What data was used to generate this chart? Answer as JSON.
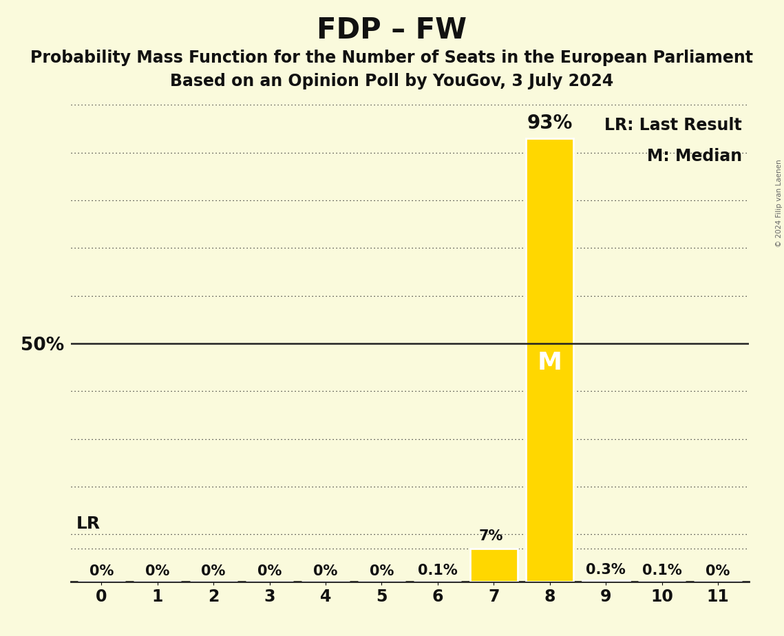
{
  "title": "FDP – FW",
  "subtitle1": "Probability Mass Function for the Number of Seats in the European Parliament",
  "subtitle2": "Based on an Opinion Poll by YouGov, 3 July 2024",
  "copyright": "© 2024 Filip van Laenen",
  "background_color": "#fafadc",
  "bar_color": "#ffd700",
  "bar_edge_color": "#ffffff",
  "categories": [
    0,
    1,
    2,
    3,
    4,
    5,
    6,
    7,
    8,
    9,
    10,
    11
  ],
  "values": [
    0.0,
    0.0,
    0.0,
    0.0,
    0.0,
    0.0,
    0.001,
    0.07,
    0.93,
    0.003,
    0.001,
    0.0
  ],
  "bar_labels": [
    "0%",
    "0%",
    "0%",
    "0%",
    "0%",
    "0%",
    "0.1%",
    "7%",
    "93%",
    "0.3%",
    "0.1%",
    "0%"
  ],
  "ylim": [
    0,
    1.0
  ],
  "ytick_positions": [
    0.0,
    0.1,
    0.2,
    0.3,
    0.4,
    0.5,
    0.6,
    0.7,
    0.8,
    0.9,
    1.0
  ],
  "median_bar": 8,
  "median_label": "M",
  "lr_bar": 7,
  "lr_label": "LR",
  "lr_value": 0.07,
  "legend_lr": "LR: Last Result",
  "legend_m": "M: Median",
  "title_fontsize": 30,
  "subtitle_fontsize": 17,
  "label_fontsize": 16,
  "tick_fontsize": 17,
  "bar_label_fontsize": 15,
  "bar_label_fontsize_large": 18,
  "median_label_fontsize": 26,
  "grid_color": "#222222",
  "text_color": "#111111",
  "fifty_label": "50%"
}
